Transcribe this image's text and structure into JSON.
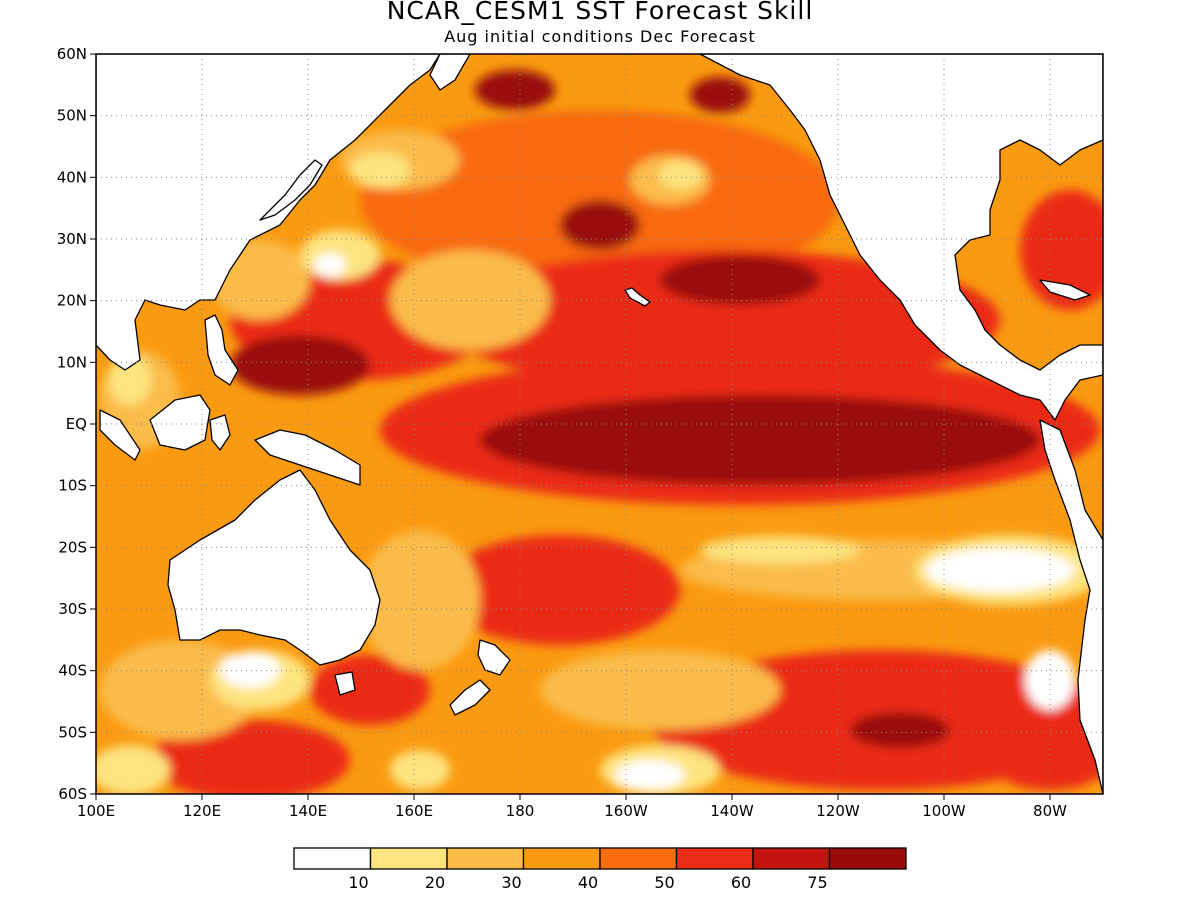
{
  "title": "NCAR_CESM1 SST Forecast Skill",
  "subtitle": "Aug initial conditions  Dec Forecast",
  "map": {
    "projection": "equirectangular",
    "lon_range": [
      100,
      290
    ],
    "lat_range": [
      -60,
      60
    ],
    "lat_ticks": [
      {
        "value": 60,
        "label": "60N"
      },
      {
        "value": 50,
        "label": "50N"
      },
      {
        "value": 40,
        "label": "40N"
      },
      {
        "value": 30,
        "label": "30N"
      },
      {
        "value": 20,
        "label": "20N"
      },
      {
        "value": 10,
        "label": "10N"
      },
      {
        "value": 0,
        "label": "EQ"
      },
      {
        "value": -10,
        "label": "10S"
      },
      {
        "value": -20,
        "label": "20S"
      },
      {
        "value": -30,
        "label": "30S"
      },
      {
        "value": -40,
        "label": "40S"
      },
      {
        "value": -50,
        "label": "50S"
      },
      {
        "value": -60,
        "label": "60S"
      }
    ],
    "lon_ticks": [
      {
        "value": 100,
        "label": "100E"
      },
      {
        "value": 120,
        "label": "120E"
      },
      {
        "value": 140,
        "label": "140E"
      },
      {
        "value": 160,
        "label": "160E"
      },
      {
        "value": 180,
        "label": "180"
      },
      {
        "value": 200,
        "label": "160W"
      },
      {
        "value": 220,
        "label": "140W"
      },
      {
        "value": 240,
        "label": "120W"
      },
      {
        "value": 260,
        "label": "100W"
      },
      {
        "value": 280,
        "label": "80W"
      }
    ],
    "grid": "dotted",
    "field": "SST forecast skill"
  },
  "legend": {
    "placement": "bottom-center",
    "boundaries": [
      "10",
      "20",
      "30",
      "40",
      "50",
      "60",
      "75"
    ],
    "colors": [
      "#ffffff",
      "#fde47f",
      "#fbbb48",
      "#fa9a10",
      "#f86b0e",
      "#eb2c17",
      "#c4140f",
      "#9a0a08"
    ]
  },
  "colors": {
    "land": "#ffffff",
    "coastline": "#000000"
  }
}
